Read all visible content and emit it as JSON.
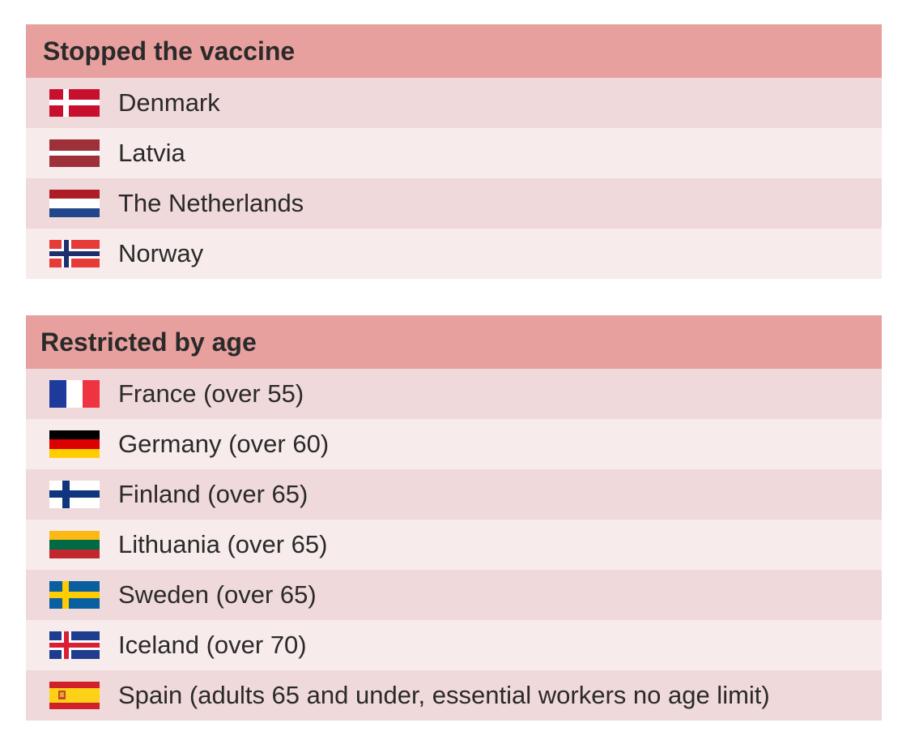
{
  "sections": [
    {
      "title": "Stopped the vaccine",
      "rows": [
        "Denmark",
        "Latvia",
        "The Netherlands",
        "Norway"
      ]
    },
    {
      "title": "Restricted by age",
      "rows": [
        "France (over 55)",
        "Germany (over 60)",
        "Finland (over 65)",
        "Lithuania (over 65)",
        "Sweden (over 65)",
        "Iceland (over 70)",
        "Spain (adults 65 and under, essential workers no age limit)"
      ]
    }
  ]
}
